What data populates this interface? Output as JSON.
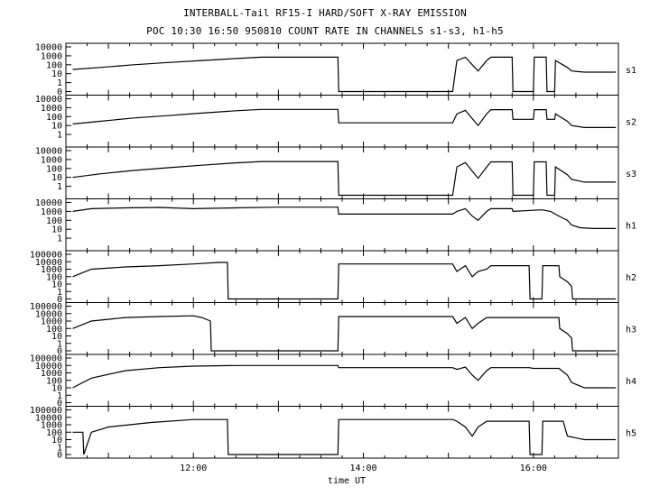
{
  "chart_data": {
    "type": "line",
    "title": "INTERBALL-Tail RF15-I HARD/SOFT X-RAY EMISSION",
    "subtitle": "POC 10:30 16:50 950810  COUNT RATE IN CHANNELS s1-s3, h1-h5",
    "xlabel": "time UT",
    "x_unit": "hours UT",
    "xlim": [
      10.5,
      17.0
    ],
    "x_ticks": [
      {
        "value": 12.0,
        "label": "12:00"
      },
      {
        "value": 14.0,
        "label": "14:00"
      },
      {
        "value": 16.0,
        "label": "16:00"
      }
    ],
    "yscale": "log",
    "panels": [
      {
        "name": "s1",
        "ylim_decades": [
          -1,
          4
        ],
        "y_tick_labels": [
          "10000",
          "1000",
          "100",
          "10",
          "1",
          "0"
        ],
        "x": [
          10.58,
          10.9,
          11.3,
          11.7,
          12.1,
          12.5,
          12.8,
          13.7,
          13.71,
          15.05,
          15.1,
          15.2,
          15.28,
          15.35,
          15.45,
          15.5,
          15.52,
          15.75,
          15.76,
          16.0,
          16.01,
          16.15,
          16.16,
          16.25,
          16.26,
          16.4,
          16.45,
          16.6,
          16.8,
          16.97
        ],
        "y": [
          30,
          50,
          100,
          180,
          300,
          500,
          700,
          700,
          0.1,
          0.1,
          300,
          700,
          100,
          20,
          300,
          700,
          700,
          700,
          0.1,
          0.1,
          700,
          700,
          0.1,
          0.1,
          300,
          50,
          20,
          15,
          15,
          15
        ]
      },
      {
        "name": "s2",
        "ylim_decades": [
          -1,
          4
        ],
        "y_tick_labels": [
          "10000",
          "1000",
          "100",
          "10",
          "1"
        ],
        "x": [
          10.58,
          10.9,
          11.3,
          11.7,
          12.1,
          12.5,
          12.8,
          13.7,
          13.71,
          15.05,
          15.1,
          15.2,
          15.28,
          15.35,
          15.45,
          15.5,
          15.52,
          15.75,
          15.76,
          16.0,
          16.01,
          16.15,
          16.16,
          16.25,
          16.26,
          16.4,
          16.45,
          16.6,
          16.8,
          16.97
        ],
        "y": [
          15,
          30,
          70,
          130,
          250,
          450,
          650,
          650,
          20,
          20,
          200,
          500,
          60,
          10,
          200,
          600,
          600,
          600,
          50,
          50,
          600,
          600,
          50,
          50,
          200,
          30,
          10,
          6,
          6,
          6
        ]
      },
      {
        "name": "s3",
        "ylim_decades": [
          -1,
          4
        ],
        "y_tick_labels": [
          "10000",
          "1000",
          "100",
          "10",
          "1"
        ],
        "x": [
          10.58,
          10.9,
          11.3,
          11.7,
          12.1,
          12.5,
          12.8,
          13.7,
          13.71,
          15.05,
          15.1,
          15.2,
          15.28,
          15.35,
          15.45,
          15.5,
          15.52,
          15.75,
          15.76,
          16.0,
          16.01,
          16.15,
          16.16,
          16.25,
          16.26,
          16.4,
          16.45,
          16.6,
          16.8,
          16.97
        ],
        "y": [
          10,
          25,
          60,
          120,
          230,
          420,
          600,
          600,
          0.1,
          0.1,
          150,
          450,
          50,
          8,
          150,
          550,
          550,
          550,
          0.1,
          0.1,
          550,
          550,
          0.1,
          0.1,
          150,
          20,
          6,
          3,
          3,
          3
        ]
      },
      {
        "name": "h1",
        "ylim_decades": [
          -1,
          4
        ],
        "y_tick_labels": [
          "10000",
          "1000",
          "100",
          "10",
          "1"
        ],
        "x": [
          10.58,
          10.8,
          11.2,
          11.6,
          12.0,
          12.5,
          13.0,
          13.7,
          13.71,
          15.05,
          15.1,
          15.2,
          15.28,
          15.35,
          15.45,
          15.5,
          15.52,
          15.75,
          15.76,
          16.1,
          16.2,
          16.3,
          16.4,
          16.45,
          16.55,
          16.7,
          16.97
        ],
        "y": [
          1000,
          2000,
          2500,
          2800,
          2000,
          2500,
          3000,
          3000,
          500,
          500,
          1000,
          2000,
          300,
          100,
          1000,
          2000,
          2000,
          2000,
          1000,
          1500,
          1000,
          300,
          100,
          30,
          15,
          12,
          12
        ]
      },
      {
        "name": "h2",
        "ylim_decades": [
          -1,
          5
        ],
        "y_tick_labels": [
          "100000",
          "10000",
          "1000",
          "100",
          "10",
          "1",
          "0"
        ],
        "x": [
          10.58,
          10.8,
          11.2,
          11.6,
          12.0,
          12.3,
          12.4,
          12.41,
          13.7,
          13.71,
          15.05,
          15.1,
          15.2,
          15.28,
          15.35,
          15.45,
          15.5,
          15.52,
          15.75,
          15.76,
          15.95,
          15.96,
          16.1,
          16.11,
          16.3,
          16.31,
          16.4,
          16.45,
          16.46,
          16.97
        ],
        "y": [
          100,
          1000,
          2000,
          3000,
          5000,
          8000,
          8000,
          0.1,
          0.1,
          5000,
          5000,
          500,
          3000,
          100,
          500,
          1000,
          3000,
          3000,
          3000,
          3000,
          3000,
          0.1,
          0.1,
          3000,
          3000,
          100,
          20,
          5,
          0.1,
          0.1
        ]
      },
      {
        "name": "h3",
        "ylim_decades": [
          -1,
          5
        ],
        "y_tick_labels": [
          "100000",
          "10000",
          "1000",
          "100",
          "10",
          "1",
          "0"
        ],
        "x": [
          10.58,
          10.8,
          11.2,
          11.6,
          12.0,
          12.1,
          12.2,
          12.21,
          13.7,
          13.71,
          15.05,
          15.1,
          15.2,
          15.28,
          15.35,
          15.45,
          15.5,
          15.52,
          15.95,
          15.96,
          16.3,
          16.31,
          16.4,
          16.45,
          16.46,
          16.97
        ],
        "y": [
          100,
          1000,
          3000,
          4000,
          5000,
          3000,
          1000,
          0.1,
          0.1,
          4000,
          4000,
          500,
          3000,
          100,
          500,
          3000,
          3000,
          3000,
          3000,
          3000,
          3000,
          100,
          20,
          5,
          0.1,
          0.1
        ]
      },
      {
        "name": "h4",
        "ylim_decades": [
          -1,
          5
        ],
        "y_tick_labels": [
          "100000",
          "10000",
          "1000",
          "100",
          "10",
          "1",
          "0"
        ],
        "x": [
          10.58,
          10.8,
          11.2,
          11.6,
          12.0,
          12.5,
          13.0,
          13.7,
          13.71,
          15.05,
          15.1,
          15.2,
          15.28,
          15.35,
          15.45,
          15.5,
          15.52,
          15.95,
          16.0,
          16.3,
          16.4,
          16.45,
          16.6,
          16.97
        ],
        "y": [
          10,
          200,
          2000,
          5000,
          8000,
          10000,
          10000,
          10000,
          5000,
          5000,
          3000,
          6000,
          500,
          100,
          2000,
          5000,
          5000,
          5000,
          4000,
          4000,
          500,
          50,
          10,
          10
        ]
      },
      {
        "name": "h5",
        "ylim_decades": [
          -1,
          5
        ],
        "y_tick_labels": [
          "100000",
          "10000",
          "1000",
          "100",
          "10",
          "1",
          "0"
        ],
        "x": [
          10.58,
          10.7,
          10.71,
          10.8,
          11.0,
          11.5,
          12.0,
          12.4,
          12.41,
          13.7,
          13.71,
          15.05,
          15.1,
          15.2,
          15.28,
          15.35,
          15.45,
          15.95,
          15.96,
          16.1,
          16.11,
          16.35,
          16.4,
          16.6,
          16.97
        ],
        "y": [
          100,
          100,
          0.1,
          100,
          500,
          2000,
          5000,
          5000,
          0.1,
          0.1,
          5000,
          5000,
          3000,
          500,
          30,
          500,
          3000,
          3000,
          0.1,
          0.1,
          3000,
          3000,
          30,
          10,
          10
        ]
      }
    ]
  }
}
